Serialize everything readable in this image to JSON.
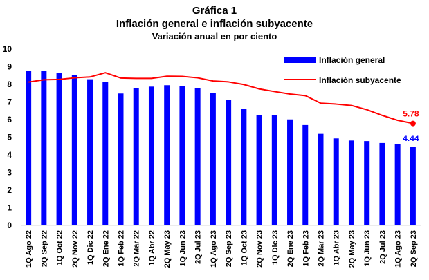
{
  "chart_data": {
    "type": "bar",
    "title": "Gráfica 1",
    "subtitle": "Inflación general e inflación subyacente",
    "subtitle2": "Variación anual en por ciento",
    "ylim": [
      0,
      10
    ],
    "yticks": [
      "0",
      "1",
      "2",
      "3",
      "4",
      "5",
      "6",
      "7",
      "8",
      "9",
      "10"
    ],
    "grid": false,
    "legend_position": "top-right",
    "categories": [
      "1Q Ago 22",
      "2Q Sep 22",
      "1Q Oct 22",
      "2Q Nov 22",
      "1Q Dic 22",
      "2Q Ene 22",
      "1Q Feb 22",
      "2Q Mar 22",
      "1Q Abr 22",
      "2Q May 23",
      "1Q Jun 23",
      "2Q Jul 23",
      "1Q Ago 23",
      "2Q Sep 23",
      "1Q Oct 23",
      "2Q Nov 23",
      "1Q Dic 23",
      "2Q Ene 23",
      "1Q Feb 23",
      "2Q Mar 23",
      "1Q Abr 23",
      "2Q May 23",
      "1Q Jun 23",
      "2Q Jul 23",
      "1Q Ago 23",
      "2Q Sep 23"
    ],
    "series": [
      {
        "name": "Inflación general",
        "type": "bar",
        "color": "#0000ff",
        "values": [
          8.77,
          8.76,
          8.63,
          8.53,
          8.29,
          8.13,
          7.48,
          7.78,
          7.87,
          7.95,
          7.91,
          7.77,
          7.51,
          7.11,
          6.59,
          6.24,
          6.27,
          6.01,
          5.69,
          5.19,
          4.93,
          4.81,
          4.78,
          4.67,
          4.6,
          4.44
        ],
        "last_label": "4.44"
      },
      {
        "name": "Inflación subyacente",
        "type": "line",
        "color": "#ff0000",
        "values": [
          8.13,
          8.26,
          8.28,
          8.37,
          8.42,
          8.66,
          8.36,
          8.34,
          8.34,
          8.46,
          8.45,
          8.37,
          8.19,
          8.14,
          7.99,
          7.74,
          7.59,
          7.45,
          7.36,
          6.93,
          6.88,
          6.8,
          6.56,
          6.24,
          5.96,
          5.78
        ],
        "last_label": "5.78"
      }
    ]
  }
}
